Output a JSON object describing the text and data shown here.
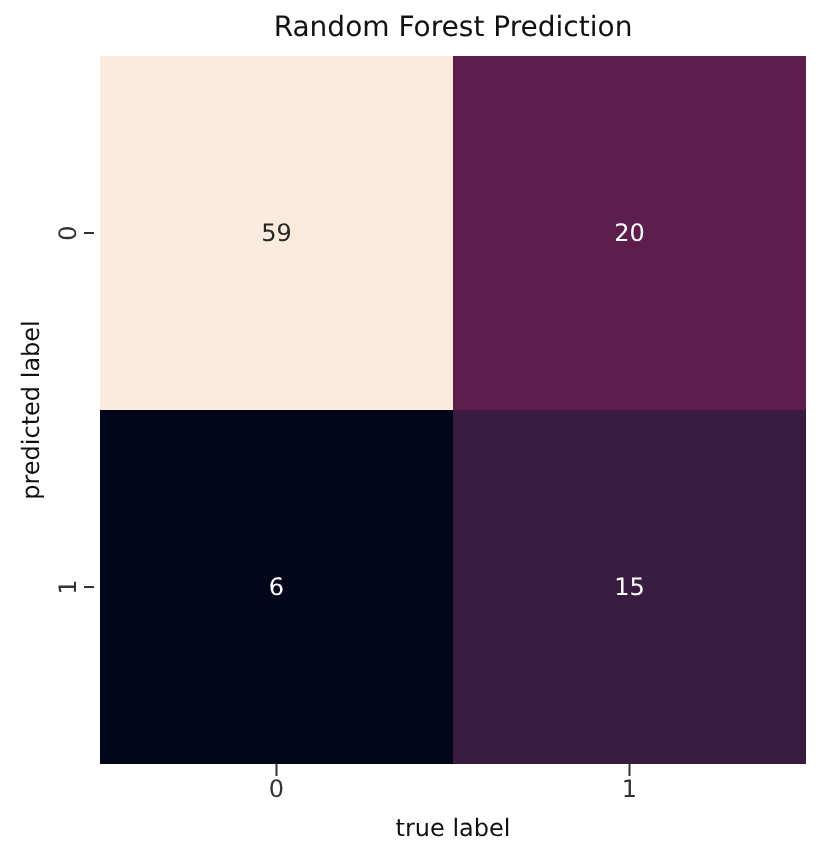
{
  "chart_data": {
    "type": "heatmap",
    "title": "Random Forest Prediction",
    "xlabel": "true label",
    "ylabel": "predicted label",
    "categories": [
      "0",
      "1"
    ],
    "y_categories": [
      "0",
      "1"
    ],
    "cells": [
      [
        59,
        20
      ],
      [
        6,
        15
      ]
    ],
    "data_labels": true
  }
}
